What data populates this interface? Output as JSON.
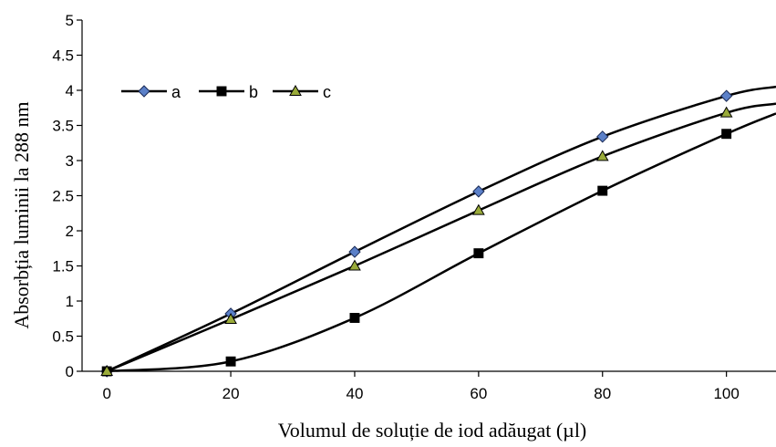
{
  "chart_data": {
    "type": "line",
    "title": "",
    "xlabel": "Volumul de soluție de iod adăugat (µl)",
    "ylabel": "Absorbția luminii la 288 nm",
    "xlim": [
      -4,
      108
    ],
    "ylim": [
      0,
      5
    ],
    "x_ticks": [
      "0",
      "20",
      "40",
      "60",
      "80",
      "100"
    ],
    "x_tick_values": [
      0,
      20,
      40,
      60,
      80,
      100
    ],
    "y_ticks": [
      "0",
      "0.5",
      "1",
      "1.5",
      "2",
      "2.5",
      "3",
      "3.5",
      "4",
      "4.5",
      "5"
    ],
    "y_tick_values": [
      0,
      0.5,
      1,
      1.5,
      2,
      2.5,
      3,
      3.5,
      4,
      4.5,
      5
    ],
    "grid": false,
    "legend_position": "top-left",
    "x": [
      0,
      20,
      40,
      60,
      80,
      100
    ],
    "series": [
      {
        "name": "a",
        "marker": "diamond",
        "marker_fill": "#5b80c8",
        "values": [
          0,
          0.82,
          1.7,
          2.56,
          3.34,
          3.92
        ],
        "extends_to": [
          108,
          4.05
        ]
      },
      {
        "name": "b",
        "marker": "square",
        "marker_fill": "#000000",
        "values": [
          0,
          0.14,
          0.76,
          1.68,
          2.57,
          3.38
        ],
        "extends_to": [
          108,
          3.67
        ]
      },
      {
        "name": "c",
        "marker": "triangle",
        "marker_fill": "#9aab3a",
        "values": [
          0,
          0.74,
          1.5,
          2.29,
          3.06,
          3.68
        ],
        "extends_to": [
          108,
          3.81
        ]
      }
    ],
    "line_color": "#000000"
  }
}
